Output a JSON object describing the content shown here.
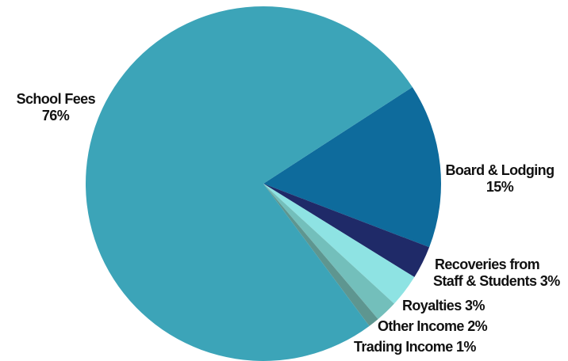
{
  "chart_data": {
    "type": "pie",
    "start_angle_deg": 327,
    "direction": "clockwise",
    "slices": [
      {
        "name": "Board & Lodging",
        "value": 15,
        "value_label": "15%",
        "color": "#0e6b9c"
      },
      {
        "name": "Recoveries from Staff & Students",
        "value": 3,
        "value_label": "Recoveries from Staff & Students 3%",
        "color": "#1f2a68"
      },
      {
        "name": "Royalties",
        "value": 3,
        "value_label": "3%",
        "color": "#8ee3e3"
      },
      {
        "name": "Other Income",
        "value": 2,
        "value_label": "2%",
        "color": "#73bfbb"
      },
      {
        "name": "Trading Income",
        "value": 1,
        "value_label": "1%",
        "color": "#5e9690"
      },
      {
        "name": "School Fees",
        "value": 76,
        "value_label": "76%",
        "color": "#3ca4b8"
      }
    ],
    "labels": {
      "board_line1": "Board & Lodging",
      "board_line2": "15%",
      "recoveries_line1": "Recoveries from",
      "recoveries_line2": "Staff & Students 3%",
      "royalties": "Royalties 3%",
      "other": "Other Income 2%",
      "trading": "Trading Income 1%",
      "school_line1": "School Fees",
      "school_line2": "76%"
    }
  }
}
